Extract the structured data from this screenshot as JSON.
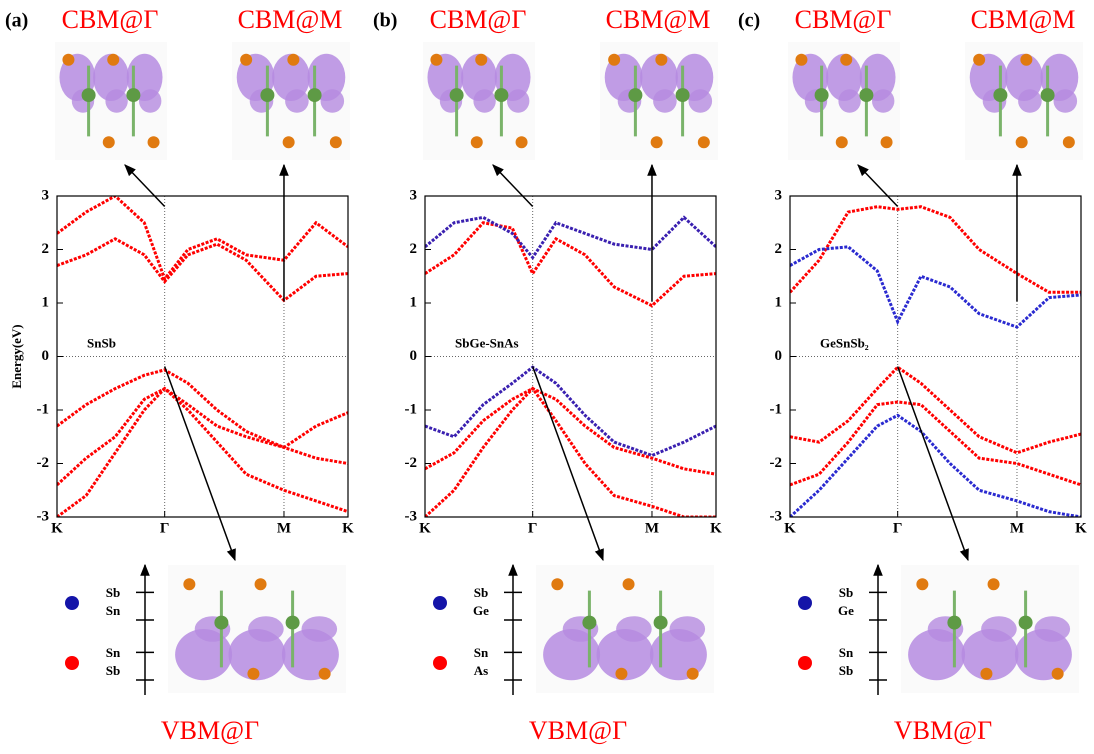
{
  "chart_data": [
    {
      "type": "line",
      "panel_label": "(a)",
      "annotations": [
        "CBM@Γ",
        "CBM@M",
        "VBM@Γ"
      ],
      "text_label": "SnSb",
      "ylabel": "Energy(eV)",
      "x": [
        0,
        0.1,
        0.2,
        0.3,
        0.37,
        0.45,
        0.55,
        0.65,
        0.78,
        0.89,
        1.0
      ],
      "xlim": [
        0,
        1
      ],
      "xticks": [
        {
          "value": 0,
          "label": "K"
        },
        {
          "value": 0.37,
          "label": "Γ"
        },
        {
          "value": 0.78,
          "label": "M"
        },
        {
          "value": 1.0,
          "label": "K"
        }
      ],
      "ylim": [
        -3,
        3
      ],
      "yticks": [
        -3,
        -2,
        -1,
        0,
        1,
        2,
        3
      ],
      "grid": true,
      "series": [
        {
          "color": "#ff0000",
          "values": [
            1.7,
            1.9,
            2.2,
            1.9,
            1.4,
            1.9,
            2.1,
            1.8,
            1.05,
            1.5,
            1.55
          ]
        },
        {
          "color": "#ff0000",
          "values": [
            2.3,
            2.7,
            3.0,
            2.5,
            1.45,
            2.0,
            2.2,
            1.9,
            1.8,
            2.5,
            2.05
          ]
        },
        {
          "color": "#ff0000",
          "values": [
            -1.3,
            -0.9,
            -0.6,
            -0.35,
            -0.25,
            -0.5,
            -1.0,
            -1.4,
            -1.7,
            -1.3,
            -1.05
          ]
        },
        {
          "color": "#ff0000",
          "values": [
            -2.4,
            -1.9,
            -1.5,
            -0.8,
            -0.6,
            -0.9,
            -1.3,
            -1.5,
            -1.7,
            -1.9,
            -2.0
          ]
        },
        {
          "color": "#ff0000",
          "values": [
            -3.0,
            -2.6,
            -1.8,
            -1.0,
            -0.6,
            -1.0,
            -1.6,
            -2.2,
            -2.5,
            -2.7,
            -2.9
          ]
        }
      ],
      "legend": [
        {
          "color": "#1414a8",
          "labels": [
            "Sb",
            "Sn"
          ]
        },
        {
          "color": "#ff0000",
          "labels": [
            "Sn",
            "Sb"
          ]
        }
      ]
    },
    {
      "type": "line",
      "panel_label": "(b)",
      "annotations": [
        "CBM@Γ",
        "CBM@M",
        "VBM@Γ"
      ],
      "text_label": "SbGe-SnAs",
      "x": [
        0,
        0.1,
        0.2,
        0.3,
        0.37,
        0.45,
        0.55,
        0.65,
        0.78,
        0.89,
        1.0
      ],
      "xlim": [
        0,
        1
      ],
      "xticks": [
        {
          "value": 0,
          "label": "K"
        },
        {
          "value": 0.37,
          "label": "Γ"
        },
        {
          "value": 0.78,
          "label": "M"
        },
        {
          "value": 1.0,
          "label": "K"
        }
      ],
      "ylim": [
        -3,
        3
      ],
      "yticks": [
        -3,
        -2,
        -1,
        0,
        1,
        2,
        3
      ],
      "grid": true,
      "series": [
        {
          "color": "#ff0000",
          "values": [
            1.55,
            1.9,
            2.5,
            2.4,
            1.55,
            2.2,
            1.9,
            1.3,
            0.95,
            1.5,
            1.55
          ]
        },
        {
          "color": "#3a20b0",
          "values": [
            2.05,
            2.5,
            2.6,
            2.3,
            1.85,
            2.5,
            2.3,
            2.1,
            2.0,
            2.6,
            2.05
          ]
        },
        {
          "color": "#3a20b0",
          "values": [
            -1.3,
            -1.5,
            -0.9,
            -0.5,
            -0.2,
            -0.5,
            -1.1,
            -1.6,
            -1.85,
            -1.6,
            -1.3
          ]
        },
        {
          "color": "#ff0000",
          "values": [
            -2.1,
            -1.8,
            -1.2,
            -0.8,
            -0.6,
            -0.8,
            -1.3,
            -1.7,
            -1.9,
            -2.1,
            -2.2
          ]
        },
        {
          "color": "#ff0000",
          "values": [
            -3.0,
            -2.5,
            -1.7,
            -1.0,
            -0.6,
            -1.2,
            -2.0,
            -2.6,
            -2.8,
            -3.0,
            -3.0
          ]
        }
      ],
      "legend": [
        {
          "color": "#1414a8",
          "labels": [
            "Sb",
            "Ge"
          ]
        },
        {
          "color": "#ff0000",
          "labels": [
            "Sn",
            "As"
          ]
        }
      ]
    },
    {
      "type": "line",
      "panel_label": "(c)",
      "annotations": [
        "CBM@Γ",
        "CBM@M",
        "VBM@Γ"
      ],
      "text_label": "GeSnSb₂",
      "x": [
        0,
        0.1,
        0.2,
        0.3,
        0.37,
        0.45,
        0.55,
        0.65,
        0.78,
        0.89,
        1.0
      ],
      "xlim": [
        0,
        1
      ],
      "xticks": [
        {
          "value": 0,
          "label": "K"
        },
        {
          "value": 0.37,
          "label": "Γ"
        },
        {
          "value": 0.78,
          "label": "M"
        },
        {
          "value": 1.0,
          "label": "K"
        }
      ],
      "ylim": [
        -3,
        3
      ],
      "yticks": [
        -3,
        -2,
        -1,
        0,
        1,
        2,
        3
      ],
      "grid": true,
      "series": [
        {
          "color": "#ff0000",
          "values": [
            1.2,
            1.8,
            2.7,
            2.8,
            2.75,
            2.8,
            2.6,
            2.0,
            1.55,
            1.2,
            1.2
          ]
        },
        {
          "color": "#2a2ad0",
          "values": [
            1.7,
            2.0,
            2.05,
            1.6,
            0.65,
            1.5,
            1.3,
            0.8,
            0.55,
            1.1,
            1.15
          ]
        },
        {
          "color": "#ff0000",
          "values": [
            -1.5,
            -1.6,
            -1.2,
            -0.6,
            -0.2,
            -0.5,
            -1.0,
            -1.5,
            -1.8,
            -1.6,
            -1.45
          ]
        },
        {
          "color": "#2a2ad0",
          "values": [
            -3.0,
            -2.5,
            -1.9,
            -1.3,
            -1.1,
            -1.4,
            -2.0,
            -2.5,
            -2.7,
            -2.9,
            -3.0
          ]
        },
        {
          "color": "#ff0000",
          "values": [
            -2.4,
            -2.2,
            -1.6,
            -0.9,
            -0.85,
            -0.9,
            -1.4,
            -1.9,
            -2.0,
            -2.2,
            -2.4
          ]
        }
      ],
      "legend": [
        {
          "color": "#1414a8",
          "labels": [
            "Sb",
            "Ge"
          ]
        },
        {
          "color": "#ff0000",
          "labels": [
            "Sn",
            "Sb"
          ]
        }
      ]
    }
  ]
}
